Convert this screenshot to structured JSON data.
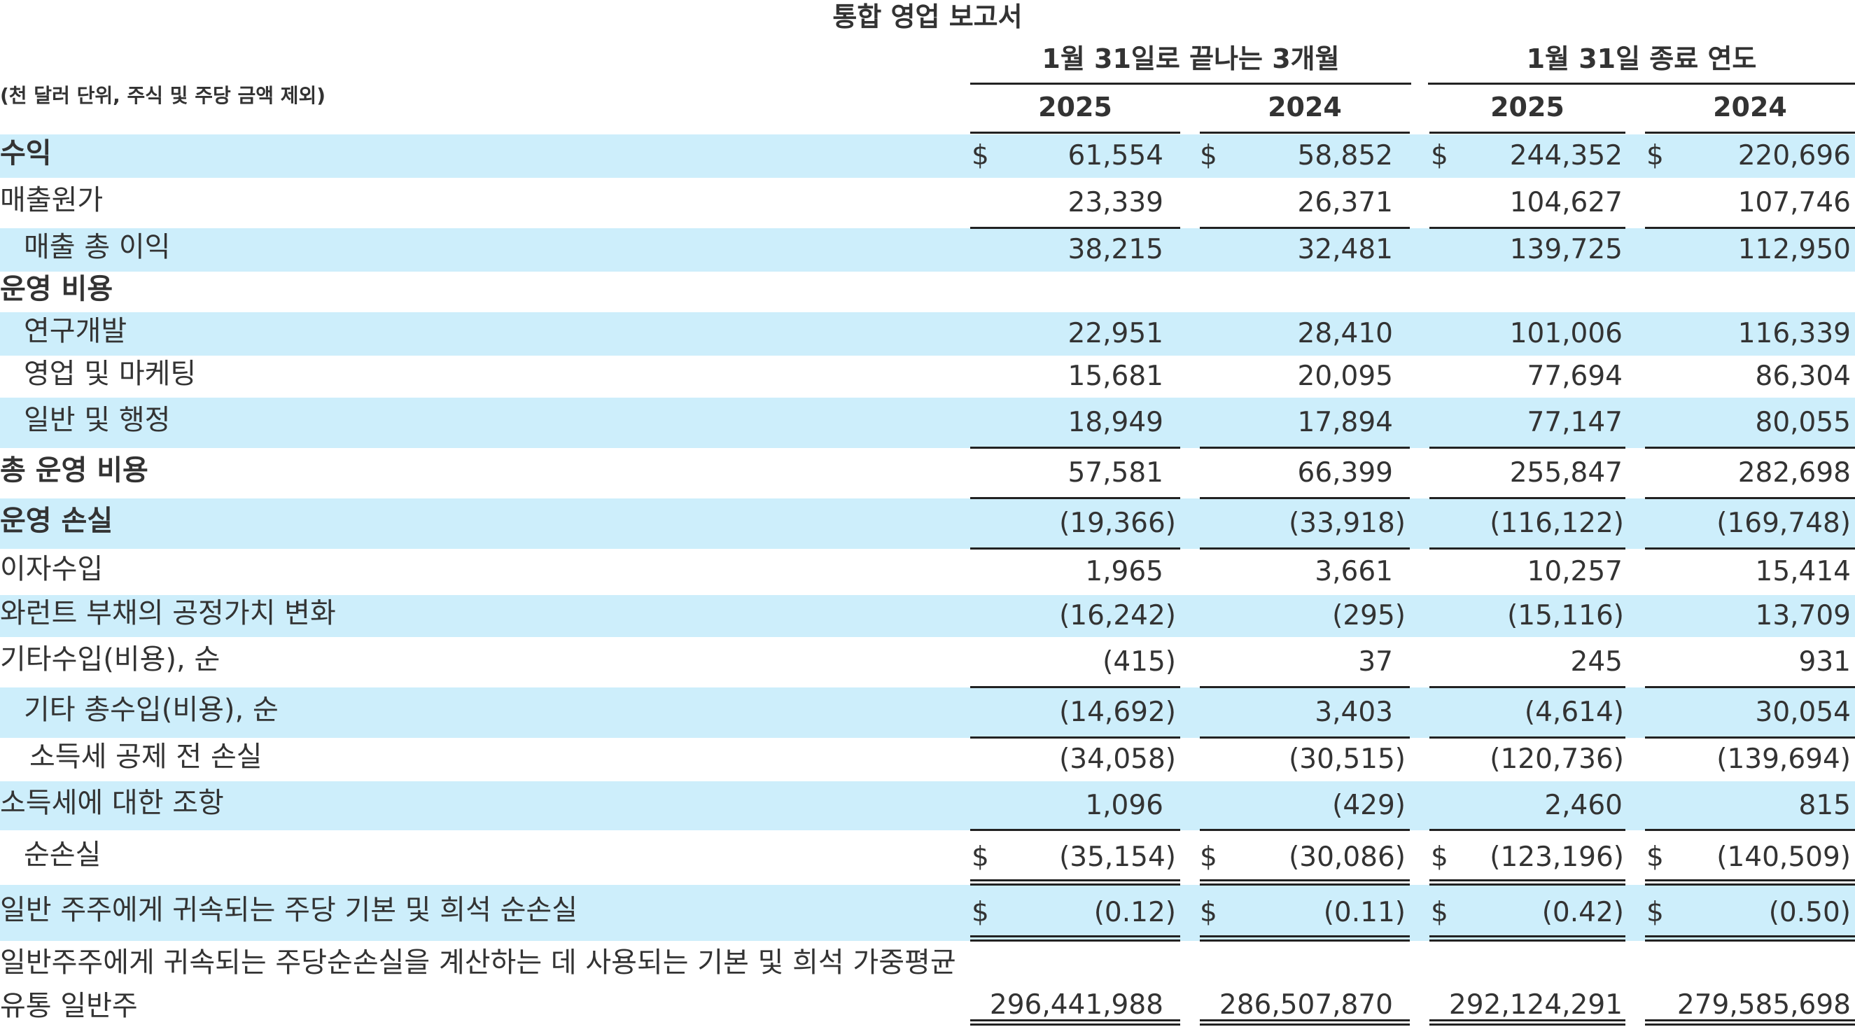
{
  "title": "통합 영업 보고서",
  "unit_note": "(천 달러 단위, 주식 및 주당 금액 제외)",
  "column_groups": [
    {
      "label": "1월 31일로 끝나는 3개월",
      "years": [
        "2025",
        "2024"
      ]
    },
    {
      "label": "1월 31일 종료 연도",
      "years": [
        "2025",
        "2024"
      ]
    }
  ],
  "currency_symbol": "$",
  "rows": [
    {
      "label": "수익",
      "values": [
        "61,554",
        "58,852",
        "244,352",
        "220,696"
      ]
    },
    {
      "label": "매출원가",
      "values": [
        "23,339",
        "26,371",
        "104,627",
        "107,746"
      ]
    },
    {
      "label": "매출 총 이익",
      "values": [
        "38,215",
        "32,481",
        "139,725",
        "112,950"
      ]
    },
    {
      "label": "운영 비용",
      "values": []
    },
    {
      "label": "연구개발",
      "values": [
        "22,951",
        "28,410",
        "101,006",
        "116,339"
      ]
    },
    {
      "label": "영업 및 마케팅",
      "values": [
        "15,681",
        "20,095",
        "77,694",
        "86,304"
      ]
    },
    {
      "label": "일반 및 행정",
      "values": [
        "18,949",
        "17,894",
        "77,147",
        "80,055"
      ]
    },
    {
      "label": "총 운영 비용",
      "values": [
        "57,581",
        "66,399",
        "255,847",
        "282,698"
      ]
    },
    {
      "label": "운영 손실",
      "values": [
        "(19,366)",
        "(33,918)",
        "(116,122)",
        "(169,748)"
      ]
    },
    {
      "label": "이자수입",
      "values": [
        "1,965",
        "3,661",
        "10,257",
        "15,414"
      ]
    },
    {
      "label": "와런트 부채의 공정가치 변화",
      "values": [
        "(16,242)",
        "(295)",
        "(15,116)",
        "13,709"
      ]
    },
    {
      "label": "기타수입(비용), 순",
      "values": [
        "(415)",
        "37",
        "245",
        "931"
      ]
    },
    {
      "label": "기타 총수입(비용), 순",
      "values": [
        "(14,692)",
        "3,403",
        "(4,614)",
        "30,054"
      ]
    },
    {
      "label": "소득세 공제 전 손실",
      "values": [
        "(34,058)",
        "(30,515)",
        "(120,736)",
        "(139,694)"
      ]
    },
    {
      "label": "소득세에 대한 조항",
      "values": [
        "1,096",
        "(429)",
        "2,460",
        "815"
      ]
    },
    {
      "label": "순손실",
      "values": [
        "(35,154)",
        "(30,086)",
        "(123,196)",
        "(140,509)"
      ]
    },
    {
      "label": "일반 주주에게 귀속되는 주당 기본 및 희석 순손실",
      "values": [
        "(0.12)",
        "(0.11)",
        "(0.42)",
        "(0.50)"
      ]
    },
    {
      "label": "일반주주에게 귀속되는 주당순손실을 계산하는 데 사용되는 기본 및 희석 가중평균 유통 일반주",
      "values": [
        "296,441,988",
        "286,507,870",
        "292,124,291",
        "279,585,698"
      ]
    }
  ],
  "colors": {
    "row_shade": "#cdeefb",
    "rule": "#222222",
    "text": "#333333"
  }
}
